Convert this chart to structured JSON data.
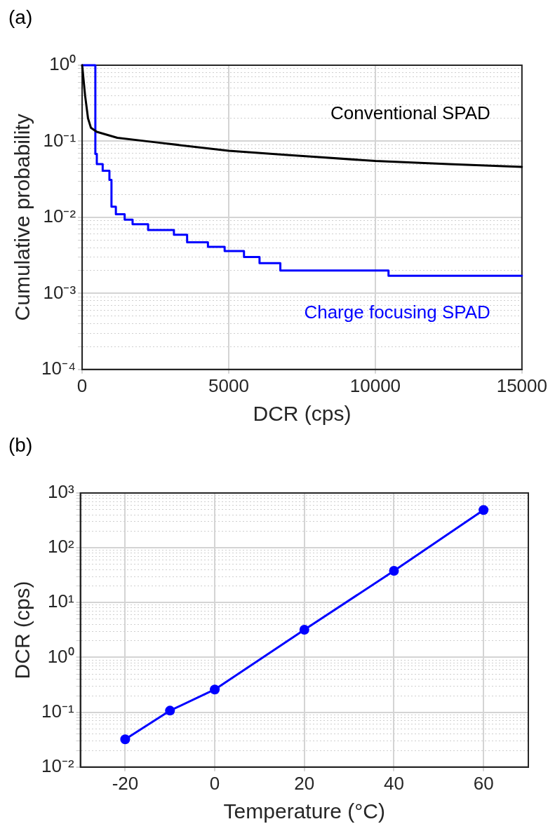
{
  "chart_data": [
    {
      "type": "line",
      "title": "(a)",
      "xlabel": "DCR (cps)",
      "ylabel": "Cumulative probability",
      "log": "y",
      "grid": true,
      "marker": "none",
      "xlim": [
        0,
        15000
      ],
      "xticks": [
        0,
        5000,
        10000,
        15000
      ],
      "ylim": [
        0.0001,
        1
      ],
      "yticks": [
        {
          "value": 0.0001,
          "label": "10⁻⁴"
        },
        {
          "value": 0.0002,
          "label": null
        },
        {
          "value": 0.0003,
          "label": null
        },
        {
          "value": 0.0004,
          "label": null
        },
        {
          "value": 0.0005,
          "label": null
        },
        {
          "value": 0.0006,
          "label": null
        },
        {
          "value": 0.0007,
          "label": null
        },
        {
          "value": 0.0008,
          "label": null
        },
        {
          "value": 0.0009,
          "label": null
        },
        {
          "value": 0.001,
          "label": "10⁻³"
        },
        {
          "value": 0.002,
          "label": null
        },
        {
          "value": 0.003,
          "label": null
        },
        {
          "value": 0.004,
          "label": null
        },
        {
          "value": 0.005,
          "label": null
        },
        {
          "value": 0.006,
          "label": null
        },
        {
          "value": 0.007,
          "label": null
        },
        {
          "value": 0.008,
          "label": null
        },
        {
          "value": 0.009,
          "label": null
        },
        {
          "value": 0.01,
          "label": "10⁻²"
        },
        {
          "value": 0.02,
          "label": null
        },
        {
          "value": 0.03,
          "label": null
        },
        {
          "value": 0.04,
          "label": null
        },
        {
          "value": 0.05,
          "label": null
        },
        {
          "value": 0.06,
          "label": null
        },
        {
          "value": 0.07,
          "label": null
        },
        {
          "value": 0.08,
          "label": null
        },
        {
          "value": 0.09,
          "label": null
        },
        {
          "value": 0.1,
          "label": "10⁻¹"
        },
        {
          "value": 0.2,
          "label": null
        },
        {
          "value": 0.3,
          "label": null
        },
        {
          "value": 0.4,
          "label": null
        },
        {
          "value": 0.5,
          "label": null
        },
        {
          "value": 0.6,
          "label": null
        },
        {
          "value": 0.7,
          "label": null
        },
        {
          "value": 0.8,
          "label": null
        },
        {
          "value": 0.9,
          "label": null
        },
        {
          "value": 1,
          "label": "10⁰"
        }
      ],
      "series": [
        {
          "name": "Conventional SPAD",
          "color": "#000000",
          "x": [
            0,
            100,
            200,
            300,
            500,
            1200,
            2500,
            5000,
            7000,
            7800,
            10000,
            12500,
            15000
          ],
          "values": [
            1,
            0.4,
            0.2,
            0.15,
            0.133,
            0.111,
            0.097,
            0.075,
            0.066,
            0.063,
            0.055,
            0.05,
            0.046
          ]
        },
        {
          "name": "Charge focusing SPAD",
          "type": "step",
          "color": "#0000ff",
          "x": [
            0,
            450,
            500,
            700,
            930,
            1000,
            1150,
            1450,
            1720,
            2250,
            3130,
            3580,
            4290,
            4860,
            5520,
            6050,
            6760,
            10450,
            15000
          ],
          "values": [
            1,
            0.068,
            0.05,
            0.041,
            0.031,
            0.0138,
            0.011,
            0.0093,
            0.0081,
            0.0068,
            0.0059,
            0.0047,
            0.0041,
            0.0036,
            0.003,
            0.0025,
            0.002,
            0.0017,
            0.0017
          ]
        }
      ]
    },
    {
      "type": "line",
      "title": "(b)",
      "xlabel": "Temperature (°C)",
      "ylabel": "DCR (cps)",
      "log": "y",
      "grid": true,
      "marker": "circle",
      "xlim": [
        -30,
        70
      ],
      "xticks": [
        -20,
        0,
        20,
        40,
        60
      ],
      "ylim": [
        0.01,
        1000
      ],
      "yticks": [
        {
          "value": 0.01,
          "label": "10⁻²"
        },
        {
          "value": 0.02,
          "label": null
        },
        {
          "value": 0.03,
          "label": null
        },
        {
          "value": 0.04,
          "label": null
        },
        {
          "value": 0.05,
          "label": null
        },
        {
          "value": 0.06,
          "label": null
        },
        {
          "value": 0.07,
          "label": null
        },
        {
          "value": 0.08,
          "label": null
        },
        {
          "value": 0.09,
          "label": null
        },
        {
          "value": 0.1,
          "label": "10⁻¹"
        },
        {
          "value": 0.2,
          "label": null
        },
        {
          "value": 0.3,
          "label": null
        },
        {
          "value": 0.4,
          "label": null
        },
        {
          "value": 0.5,
          "label": null
        },
        {
          "value": 0.6,
          "label": null
        },
        {
          "value": 0.7,
          "label": null
        },
        {
          "value": 0.8,
          "label": null
        },
        {
          "value": 0.9,
          "label": null
        },
        {
          "value": 1,
          "label": "10⁰"
        },
        {
          "value": 2,
          "label": null
        },
        {
          "value": 3,
          "label": null
        },
        {
          "value": 4,
          "label": null
        },
        {
          "value": 5,
          "label": null
        },
        {
          "value": 6,
          "label": null
        },
        {
          "value": 7,
          "label": null
        },
        {
          "value": 8,
          "label": null
        },
        {
          "value": 9,
          "label": null
        },
        {
          "value": 10,
          "label": "10¹"
        },
        {
          "value": 20,
          "label": null
        },
        {
          "value": 30,
          "label": null
        },
        {
          "value": 40,
          "label": null
        },
        {
          "value": 50,
          "label": null
        },
        {
          "value": 60,
          "label": null
        },
        {
          "value": 70,
          "label": null
        },
        {
          "value": 80,
          "label": null
        },
        {
          "value": 90,
          "label": null
        },
        {
          "value": 100,
          "label": "10²"
        },
        {
          "value": 200,
          "label": null
        },
        {
          "value": 300,
          "label": null
        },
        {
          "value": 400,
          "label": null
        },
        {
          "value": 500,
          "label": null
        },
        {
          "value": 600,
          "label": null
        },
        {
          "value": 700,
          "label": null
        },
        {
          "value": 800,
          "label": null
        },
        {
          "value": 900,
          "label": null
        },
        {
          "value": 1000,
          "label": "10³"
        }
      ],
      "series": [
        {
          "color": "#0000ff",
          "x": [
            -20,
            -10,
            0,
            20,
            40,
            60
          ],
          "values": [
            0.032,
            0.107,
            0.26,
            3.2,
            38,
            490
          ]
        }
      ]
    }
  ]
}
